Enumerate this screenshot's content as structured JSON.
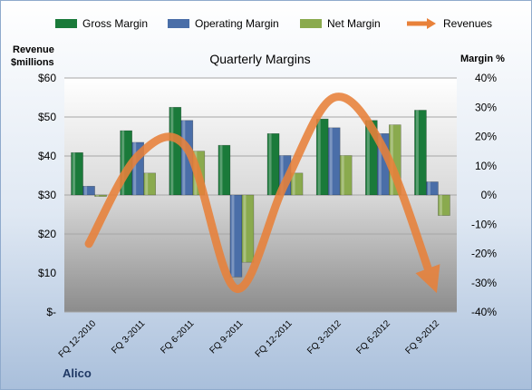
{
  "chart_data": {
    "type": "bar",
    "title": "Quarterly Margins",
    "left_axis_label_line1": "Revenue",
    "left_axis_label_line2": "$millions",
    "right_axis_label": "Margin %",
    "left_ticks": [
      "$-",
      "$10",
      "$20",
      "$30",
      "$40",
      "$50",
      "$60"
    ],
    "right_ticks": [
      "-40%",
      "-30%",
      "-20%",
      "-10%",
      "0%",
      "10%",
      "20%",
      "30%",
      "40%"
    ],
    "left_ylim": [
      0,
      60
    ],
    "right_ylim": [
      -40,
      40
    ],
    "categories": [
      "FQ 12-2010",
      "FQ 3-2011",
      "FQ 6-2011",
      "FQ 9-2011",
      "FQ 12-2011",
      "FQ 3-2012",
      "FQ 6-2012",
      "FQ 9-2012"
    ],
    "series": [
      {
        "name": "Gross Margin",
        "axis": "right",
        "color": "#1a7a3a",
        "values": [
          14.5,
          22,
          30,
          17,
          21,
          26,
          25.5,
          29
        ]
      },
      {
        "name": "Operating Margin",
        "axis": "right",
        "color": "#4a6ea8",
        "values": [
          3,
          18,
          25.5,
          -28,
          13.5,
          23,
          21,
          4.5
        ]
      },
      {
        "name": "Net Margin",
        "axis": "right",
        "color": "#8aaa4e",
        "values": [
          -0.5,
          7.5,
          15,
          -23,
          7.5,
          13.5,
          24,
          -7
        ]
      }
    ],
    "revenues": {
      "name": "Revenues",
      "axis": "left",
      "color": "#e8813a",
      "values": [
        17.5,
        40,
        42,
        6,
        33,
        55,
        42,
        8
      ]
    },
    "grid": true,
    "legend": "top"
  },
  "footer": {
    "company": "Alico"
  }
}
